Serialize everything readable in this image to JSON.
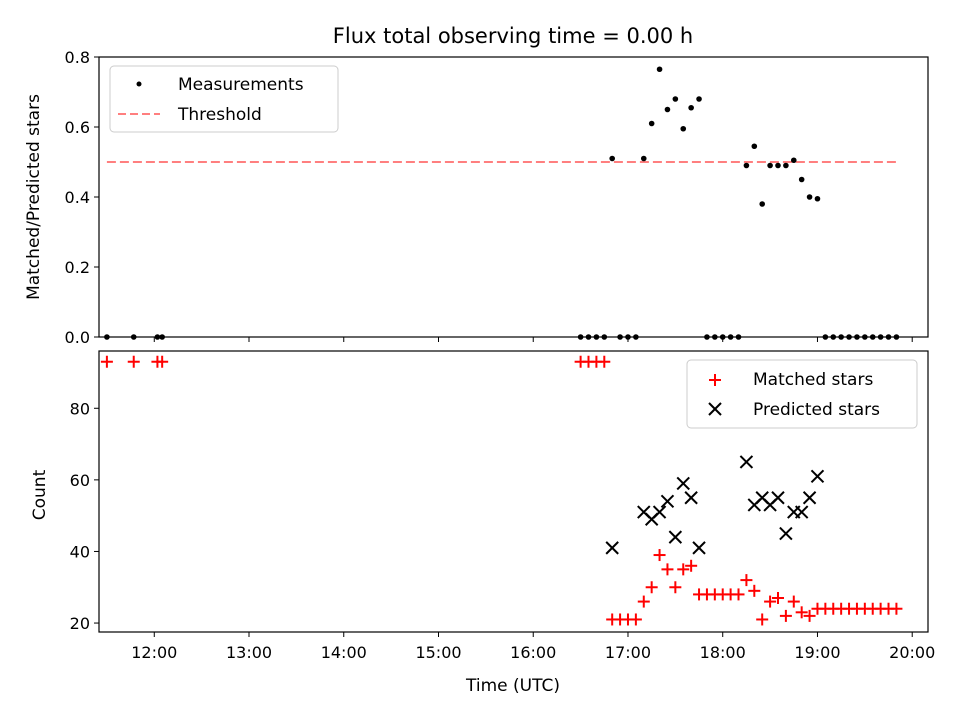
{
  "chart_data": [
    {
      "type": "scatter",
      "title": "Flux total observing time = 0.00 h",
      "xlabel": "",
      "ylabel": "Matched/Predicted stars",
      "xlim": [
        "11:25",
        "20:10"
      ],
      "ylim": [
        0,
        0.8
      ],
      "yticks": [
        "0.0",
        "0.2",
        "0.4",
        "0.6",
        "0.8"
      ],
      "grid": false,
      "legend_position": "top-left",
      "threshold": {
        "name": "Threshold",
        "value": 0.5,
        "x_start": "11:30",
        "x_end": "19:52",
        "color": "#ff7f7f",
        "style": "dashed"
      },
      "series": [
        {
          "name": "Measurements",
          "color": "#000000",
          "marker": "dot",
          "points": [
            [
              "11:30",
              0.0
            ],
            [
              "11:47",
              0.0
            ],
            [
              "12:02",
              0.0
            ],
            [
              "12:05",
              0.0
            ],
            [
              "16:30",
              0.0
            ],
            [
              "16:35",
              0.0
            ],
            [
              "16:40",
              0.0
            ],
            [
              "16:45",
              0.0
            ],
            [
              "16:50",
              0.51
            ],
            [
              "16:55",
              0.0
            ],
            [
              "17:00",
              0.0
            ],
            [
              "17:05",
              0.0
            ],
            [
              "17:10",
              0.51
            ],
            [
              "17:15",
              0.61
            ],
            [
              "17:20",
              0.765
            ],
            [
              "17:25",
              0.65
            ],
            [
              "17:30",
              0.68
            ],
            [
              "17:35",
              0.595
            ],
            [
              "17:40",
              0.655
            ],
            [
              "17:45",
              0.68
            ],
            [
              "17:50",
              0.0
            ],
            [
              "17:55",
              0.0
            ],
            [
              "18:00",
              0.0
            ],
            [
              "18:05",
              0.0
            ],
            [
              "18:10",
              0.0
            ],
            [
              "18:15",
              0.49
            ],
            [
              "18:20",
              0.545
            ],
            [
              "18:25",
              0.38
            ],
            [
              "18:30",
              0.49
            ],
            [
              "18:35",
              0.49
            ],
            [
              "18:40",
              0.49
            ],
            [
              "18:45",
              0.505
            ],
            [
              "18:50",
              0.45
            ],
            [
              "18:55",
              0.4
            ],
            [
              "19:00",
              0.395
            ],
            [
              "19:05",
              0.0
            ],
            [
              "19:10",
              0.0
            ],
            [
              "19:15",
              0.0
            ],
            [
              "19:20",
              0.0
            ],
            [
              "19:25",
              0.0
            ],
            [
              "19:30",
              0.0
            ],
            [
              "19:35",
              0.0
            ],
            [
              "19:40",
              0.0
            ],
            [
              "19:45",
              0.0
            ],
            [
              "19:50",
              0.0
            ]
          ]
        }
      ]
    },
    {
      "type": "scatter",
      "title": "",
      "xlabel": "Time (UTC)",
      "ylabel": "Count",
      "xlim": [
        "11:25",
        "20:10"
      ],
      "ylim": [
        17.5,
        96
      ],
      "yticks": [
        "20",
        "40",
        "60",
        "80"
      ],
      "xticks": [
        "12:00",
        "13:00",
        "14:00",
        "15:00",
        "16:00",
        "17:00",
        "18:00",
        "19:00",
        "20:00"
      ],
      "grid": false,
      "legend_position": "top-right",
      "series": [
        {
          "name": "Matched stars",
          "color": "#ff0000",
          "marker": "plus",
          "points": [
            [
              "11:30",
              93
            ],
            [
              "11:47",
              93
            ],
            [
              "12:02",
              93
            ],
            [
              "12:05",
              93
            ],
            [
              "16:30",
              93
            ],
            [
              "16:35",
              93
            ],
            [
              "16:40",
              93
            ],
            [
              "16:45",
              93
            ],
            [
              "16:50",
              21
            ],
            [
              "16:55",
              21
            ],
            [
              "17:00",
              21
            ],
            [
              "17:05",
              21
            ],
            [
              "17:10",
              26
            ],
            [
              "17:15",
              30
            ],
            [
              "17:20",
              39
            ],
            [
              "17:25",
              35
            ],
            [
              "17:30",
              30
            ],
            [
              "17:35",
              35
            ],
            [
              "17:40",
              36
            ],
            [
              "17:45",
              28
            ],
            [
              "17:50",
              28
            ],
            [
              "17:55",
              28
            ],
            [
              "18:00",
              28
            ],
            [
              "18:05",
              28
            ],
            [
              "18:10",
              28
            ],
            [
              "18:15",
              32
            ],
            [
              "18:20",
              29
            ],
            [
              "18:25",
              21
            ],
            [
              "18:30",
              26
            ],
            [
              "18:35",
              27
            ],
            [
              "18:40",
              22
            ],
            [
              "18:45",
              26
            ],
            [
              "18:50",
              23
            ],
            [
              "18:55",
              22
            ],
            [
              "19:00",
              24
            ],
            [
              "19:05",
              24
            ],
            [
              "19:10",
              24
            ],
            [
              "19:15",
              24
            ],
            [
              "19:20",
              24
            ],
            [
              "19:25",
              24
            ],
            [
              "19:30",
              24
            ],
            [
              "19:35",
              24
            ],
            [
              "19:40",
              24
            ],
            [
              "19:45",
              24
            ],
            [
              "19:50",
              24
            ]
          ]
        },
        {
          "name": "Predicted stars",
          "color": "#000000",
          "marker": "x",
          "points": [
            [
              "16:50",
              41
            ],
            [
              "17:10",
              51
            ],
            [
              "17:15",
              49
            ],
            [
              "17:20",
              51
            ],
            [
              "17:25",
              54
            ],
            [
              "17:30",
              44
            ],
            [
              "17:35",
              59
            ],
            [
              "17:40",
              55
            ],
            [
              "17:45",
              41
            ],
            [
              "18:15",
              65
            ],
            [
              "18:20",
              53
            ],
            [
              "18:25",
              55
            ],
            [
              "18:30",
              53
            ],
            [
              "18:35",
              55
            ],
            [
              "18:40",
              45
            ],
            [
              "18:45",
              51
            ],
            [
              "18:50",
              51
            ],
            [
              "18:55",
              55
            ],
            [
              "19:00",
              61
            ]
          ]
        }
      ]
    }
  ]
}
